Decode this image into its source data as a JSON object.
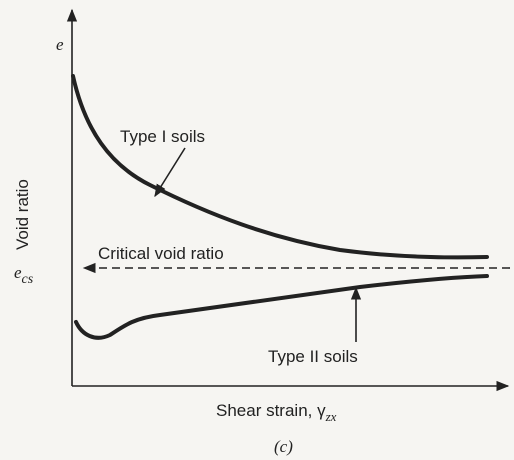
{
  "axes": {
    "y_symbol": "e",
    "y_label": "Void ratio",
    "x_label": "Shear strain, γ",
    "x_label_subscript": "zx"
  },
  "critical": {
    "symbol": "e",
    "subscript": "cs",
    "label": "Critical void ratio"
  },
  "curves": [
    {
      "label": "Type I soils"
    },
    {
      "label": "Type II soils"
    }
  ],
  "caption": "(c)"
}
